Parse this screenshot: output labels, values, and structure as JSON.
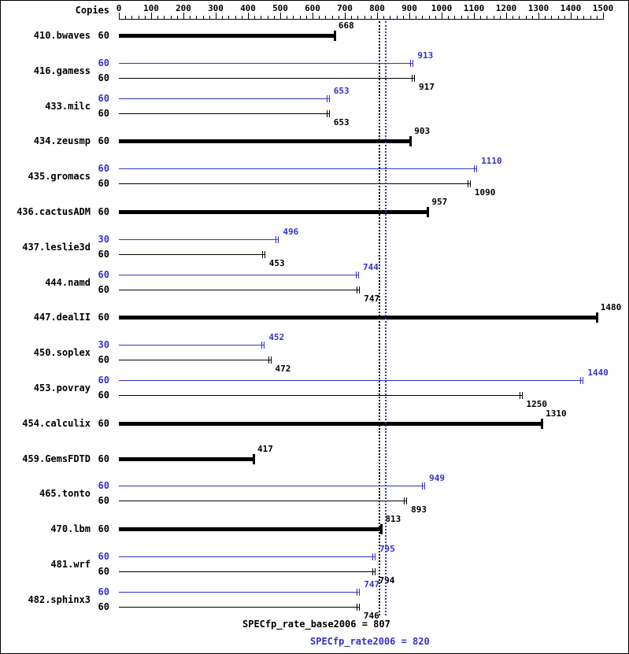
{
  "chart_data": {
    "type": "bar",
    "orientation": "horizontal",
    "copies_header": "Copies",
    "axis": {
      "label": "Copies",
      "min": 0,
      "max": 1500,
      "major_step": 100,
      "minor_step": 20,
      "tick_labels": [
        "0",
        "100",
        "200",
        "300",
        "400",
        "500",
        "600",
        "700",
        "800",
        "900",
        "1000",
        "1100",
        "1200",
        "1300",
        "1400",
        "1500"
      ]
    },
    "benchmarks": [
      {
        "name": "410.bwaves",
        "base": {
          "copies": "60",
          "value": 668
        }
      },
      {
        "name": "416.gamess",
        "peak": {
          "copies": "60",
          "value": 913
        },
        "base": {
          "copies": "60",
          "value": 917
        }
      },
      {
        "name": "433.milc",
        "peak": {
          "copies": "60",
          "value": 653
        },
        "base": {
          "copies": "60",
          "value": 653
        }
      },
      {
        "name": "434.zeusmp",
        "base": {
          "copies": "60",
          "value": 903
        }
      },
      {
        "name": "435.gromacs",
        "peak": {
          "copies": "60",
          "value": 1110
        },
        "base": {
          "copies": "60",
          "value": 1090
        }
      },
      {
        "name": "436.cactusADM",
        "base": {
          "copies": "60",
          "value": 957
        }
      },
      {
        "name": "437.leslie3d",
        "peak": {
          "copies": "30",
          "value": 496
        },
        "base": {
          "copies": "60",
          "value": 453
        }
      },
      {
        "name": "444.namd",
        "peak": {
          "copies": "60",
          "value": 744
        },
        "base": {
          "copies": "60",
          "value": 747
        }
      },
      {
        "name": "447.dealII",
        "base": {
          "copies": "60",
          "value": 1480
        }
      },
      {
        "name": "450.soplex",
        "peak": {
          "copies": "30",
          "value": 452
        },
        "base": {
          "copies": "60",
          "value": 472
        }
      },
      {
        "name": "453.povray",
        "peak": {
          "copies": "60",
          "value": 1440
        },
        "base": {
          "copies": "60",
          "value": 1250
        }
      },
      {
        "name": "454.calculix",
        "base": {
          "copies": "60",
          "value": 1310
        }
      },
      {
        "name": "459.GemsFDTD",
        "base": {
          "copies": "60",
          "value": 417
        }
      },
      {
        "name": "465.tonto",
        "peak": {
          "copies": "60",
          "value": 949
        },
        "base": {
          "copies": "60",
          "value": 893
        }
      },
      {
        "name": "470.lbm",
        "base": {
          "copies": "60",
          "value": 813
        }
      },
      {
        "name": "481.wrf",
        "peak": {
          "copies": "60",
          "value": 795
        },
        "base": {
          "copies": "60",
          "value": 794
        }
      },
      {
        "name": "482.sphinx3",
        "peak": {
          "copies": "60",
          "value": 747
        },
        "base": {
          "copies": "60",
          "value": 746
        }
      }
    ],
    "summary": {
      "base_label": "SPECfp_rate_base2006 = 807",
      "base_value": 807,
      "peak_label": "SPECfp_rate2006 = 820",
      "peak_value": 820
    },
    "colors": {
      "base": "#000000",
      "peak": "#3333cc"
    }
  }
}
